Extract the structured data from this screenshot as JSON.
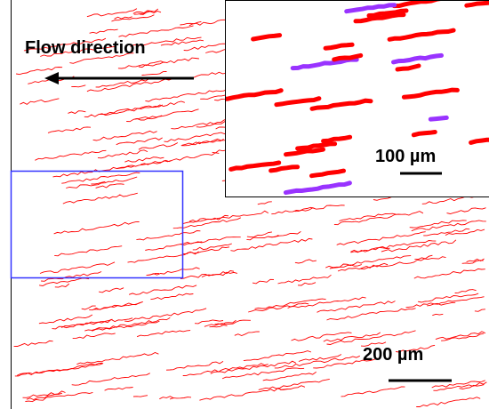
{
  "labels": {
    "flow": "Flow direction",
    "inset_scale": "100 µm",
    "main_scale": "200 µm"
  }
}
